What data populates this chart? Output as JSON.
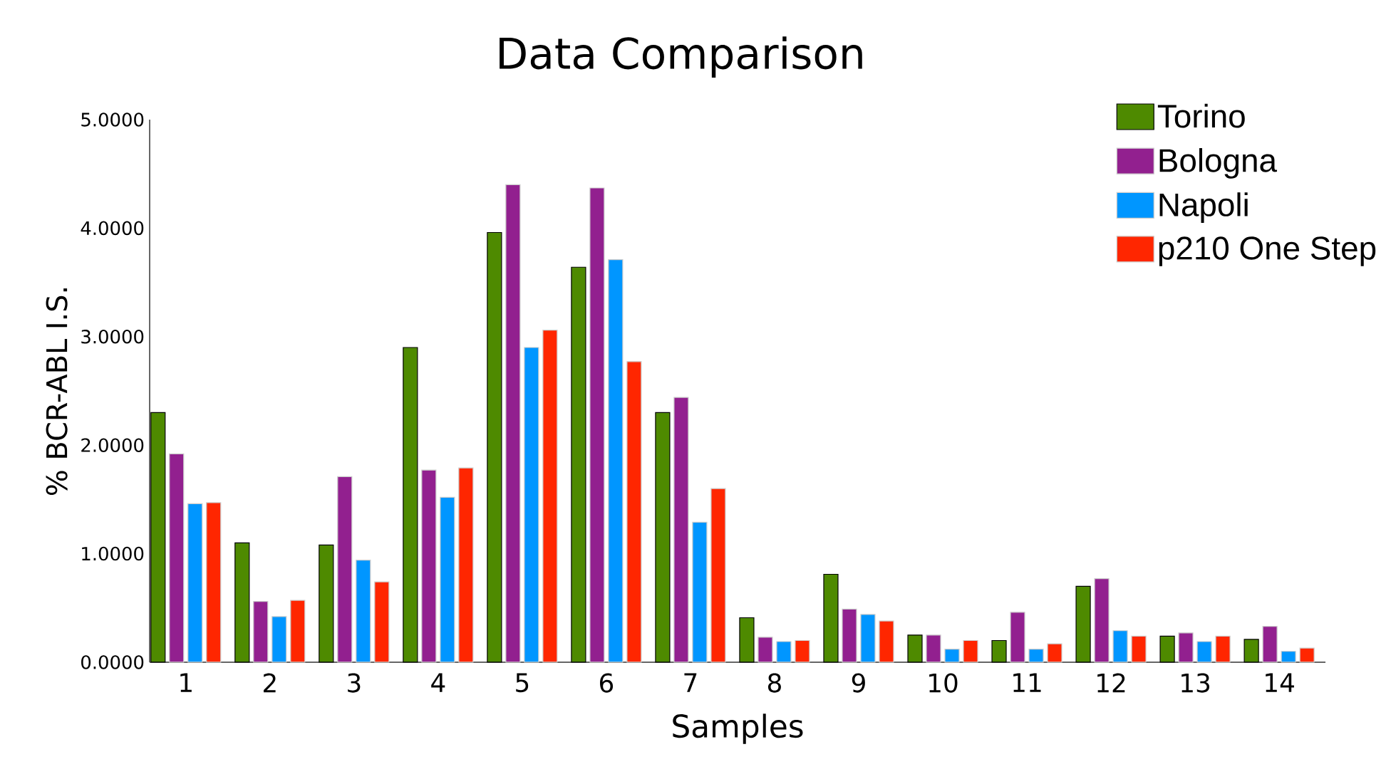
{
  "chart_data": {
    "type": "bar",
    "title": "Data Comparison",
    "xlabel": "Samples",
    "ylabel": "% BCR-ABL I.S.",
    "categories": [
      "1",
      "2",
      "3",
      "4",
      "5",
      "6",
      "7",
      "8",
      "9",
      "10",
      "11",
      "12",
      "13",
      "14"
    ],
    "series": [
      {
        "name": "Torino",
        "color": "#4e8a00",
        "values": [
          2.3,
          1.1,
          1.08,
          2.9,
          3.96,
          3.64,
          2.3,
          0.41,
          0.81,
          0.25,
          0.2,
          0.7,
          0.24,
          0.21
        ]
      },
      {
        "name": "Bologna",
        "color": "#92208f",
        "values": [
          1.92,
          0.56,
          1.71,
          1.77,
          4.4,
          4.37,
          2.44,
          0.23,
          0.49,
          0.25,
          0.46,
          0.77,
          0.27,
          0.33
        ]
      },
      {
        "name": "Napoli",
        "color": "#0096ff",
        "values": [
          1.46,
          0.42,
          0.94,
          1.52,
          2.9,
          3.71,
          1.29,
          0.19,
          0.44,
          0.12,
          0.12,
          0.29,
          0.19,
          0.1
        ]
      },
      {
        "name": "p210 One Step",
        "color": "#ff2600",
        "values": [
          1.47,
          0.57,
          0.74,
          1.79,
          3.06,
          2.77,
          1.6,
          0.2,
          0.38,
          0.2,
          0.17,
          0.24,
          0.24,
          0.13
        ]
      }
    ],
    "ylim": [
      0,
      5
    ],
    "yticks": [
      {
        "value": 0,
        "label": "0.0000"
      },
      {
        "value": 1,
        "label": "1.0000"
      },
      {
        "value": 2,
        "label": "2.0000"
      },
      {
        "value": 3,
        "label": "3.0000"
      },
      {
        "value": 4,
        "label": "4.0000"
      },
      {
        "value": 5,
        "label": "5.0000"
      }
    ],
    "legend": "top right"
  }
}
